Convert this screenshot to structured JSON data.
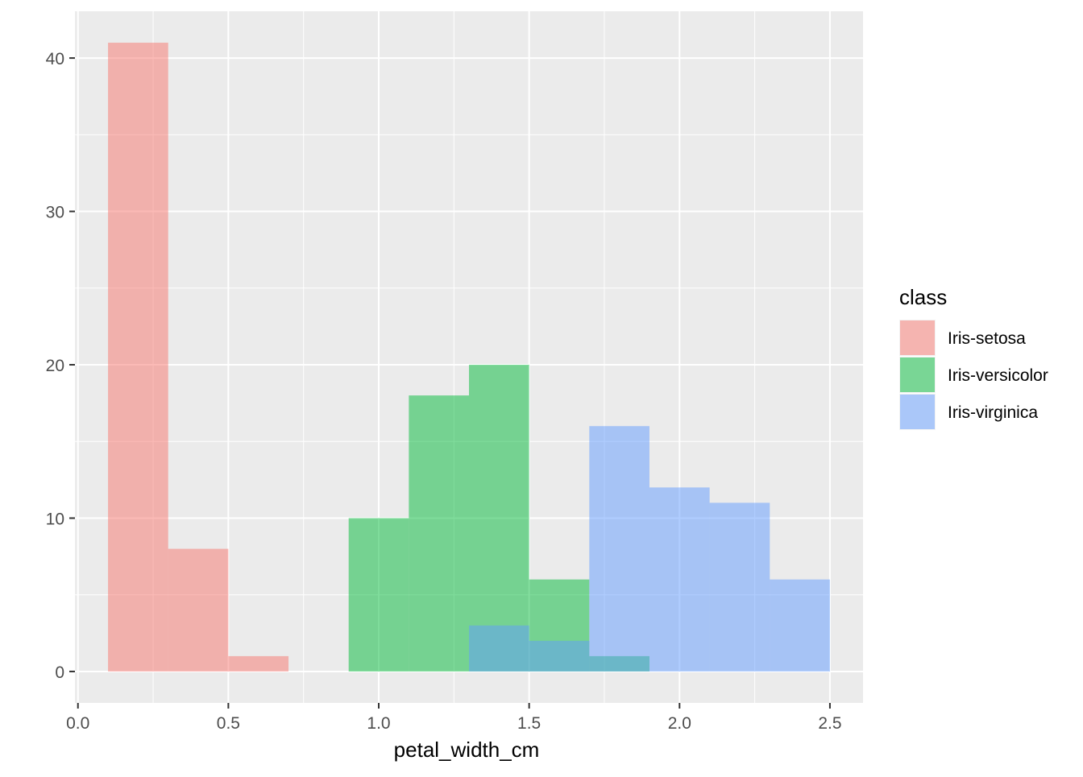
{
  "chart_data": {
    "type": "bar",
    "xlabel": "petal_width_cm",
    "ylabel": "",
    "title": "",
    "xlim": [
      -0.01,
      2.61
    ],
    "ylim": [
      -2.05,
      43.05
    ],
    "xticks": [
      0.0,
      0.5,
      1.0,
      1.5,
      2.0,
      2.5
    ],
    "xtick_labels": [
      "0.0",
      "0.5",
      "1.0",
      "1.5",
      "2.0",
      "2.5"
    ],
    "yticks": [
      0,
      10,
      20,
      30,
      40
    ],
    "ytick_labels": [
      "0",
      "10",
      "20",
      "30",
      "40"
    ],
    "grid": true,
    "legend": {
      "title": "class",
      "placement": "right"
    },
    "bin_width": 0.2,
    "series": [
      {
        "name": "Iris-setosa",
        "color": "#F8766D",
        "bins": [
          {
            "x0": 0.1,
            "x1": 0.3,
            "count": 41
          },
          {
            "x0": 0.3,
            "x1": 0.5,
            "count": 8
          },
          {
            "x0": 0.5,
            "x1": 0.7,
            "count": 1
          }
        ]
      },
      {
        "name": "Iris-versicolor",
        "color": "#00BA38",
        "bins": [
          {
            "x0": 0.9,
            "x1": 1.1,
            "count": 10
          },
          {
            "x0": 1.1,
            "x1": 1.3,
            "count": 18
          },
          {
            "x0": 1.3,
            "x1": 1.5,
            "count": 20
          },
          {
            "x0": 1.5,
            "x1": 1.7,
            "count": 6
          },
          {
            "x0": 1.7,
            "x1": 1.9,
            "count": 1
          }
        ]
      },
      {
        "name": "Iris-virginica",
        "color": "#619CFF",
        "bins": [
          {
            "x0": 1.3,
            "x1": 1.5,
            "count": 3
          },
          {
            "x0": 1.5,
            "x1": 1.7,
            "count": 2
          },
          {
            "x0": 1.7,
            "x1": 1.9,
            "count": 16
          },
          {
            "x0": 1.9,
            "x1": 2.1,
            "count": 12
          },
          {
            "x0": 2.1,
            "x1": 2.3,
            "count": 11
          },
          {
            "x0": 2.3,
            "x1": 2.5,
            "count": 6
          }
        ]
      }
    ]
  }
}
